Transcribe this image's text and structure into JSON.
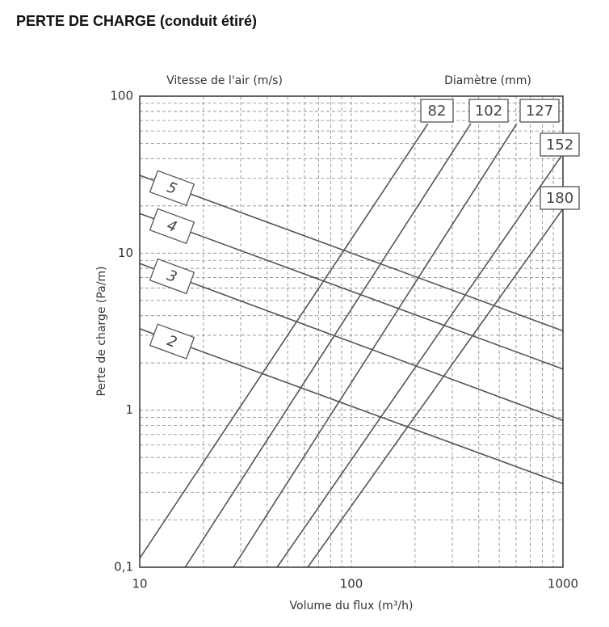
{
  "chart_data": {
    "type": "line",
    "title": "PERTE DE CHARGE (conduit étiré)",
    "x_label": "Volume du flux (m³/h)",
    "y_label": "Perte de charge (Pa/m)",
    "velocity_heading": "Vitesse de l'air (m/s)",
    "diameter_heading": "Diamètre (mm)",
    "x_log": true,
    "y_log": true,
    "grid": true,
    "line_color": "#555555",
    "xlim": [
      10,
      1000
    ],
    "ylim": [
      0.1,
      100
    ],
    "xticks": [
      10,
      100,
      1000
    ],
    "yticks": [
      {
        "value": 0.1,
        "label": "0,1"
      },
      1,
      10,
      100
    ],
    "x_minor_grid": [
      20,
      30,
      40,
      50,
      60,
      70,
      80,
      90,
      200,
      300,
      400,
      500,
      600,
      700,
      800,
      900
    ],
    "y_minor_grid": [
      0.2,
      0.3,
      0.4,
      0.5,
      0.6,
      0.7,
      0.8,
      0.9,
      2,
      3,
      4,
      5,
      6,
      7,
      8,
      9,
      20,
      30,
      40,
      50,
      60,
      70,
      80,
      90
    ],
    "diameter_series": [
      {
        "name": "82",
        "x": [
          10,
          230
        ],
        "values": [
          0.114,
          66.8
        ]
      },
      {
        "name": "102",
        "x": [
          16.4,
          367
        ],
        "values": [
          0.1,
          66.8
        ]
      },
      {
        "name": "127",
        "x": [
          27.7,
          605
        ],
        "values": [
          0.1,
          66.8
        ]
      },
      {
        "name": "152",
        "x": [
          44.6,
          1000
        ],
        "values": [
          0.1,
          43
        ]
      },
      {
        "name": "180",
        "x": [
          62.2,
          1000
        ],
        "values": [
          0.1,
          19.2
        ]
      }
    ],
    "velocity_series": [
      {
        "name": "5",
        "x": [
          10,
          1000
        ],
        "values": [
          31.3,
          3.2
        ]
      },
      {
        "name": "4",
        "x": [
          10,
          1000
        ],
        "values": [
          17.9,
          1.83
        ]
      },
      {
        "name": "3",
        "x": [
          10,
          1000
        ],
        "values": [
          8.6,
          0.86
        ]
      },
      {
        "name": "2",
        "x": [
          10,
          1000
        ],
        "values": [
          3.3,
          0.34
        ]
      }
    ]
  }
}
